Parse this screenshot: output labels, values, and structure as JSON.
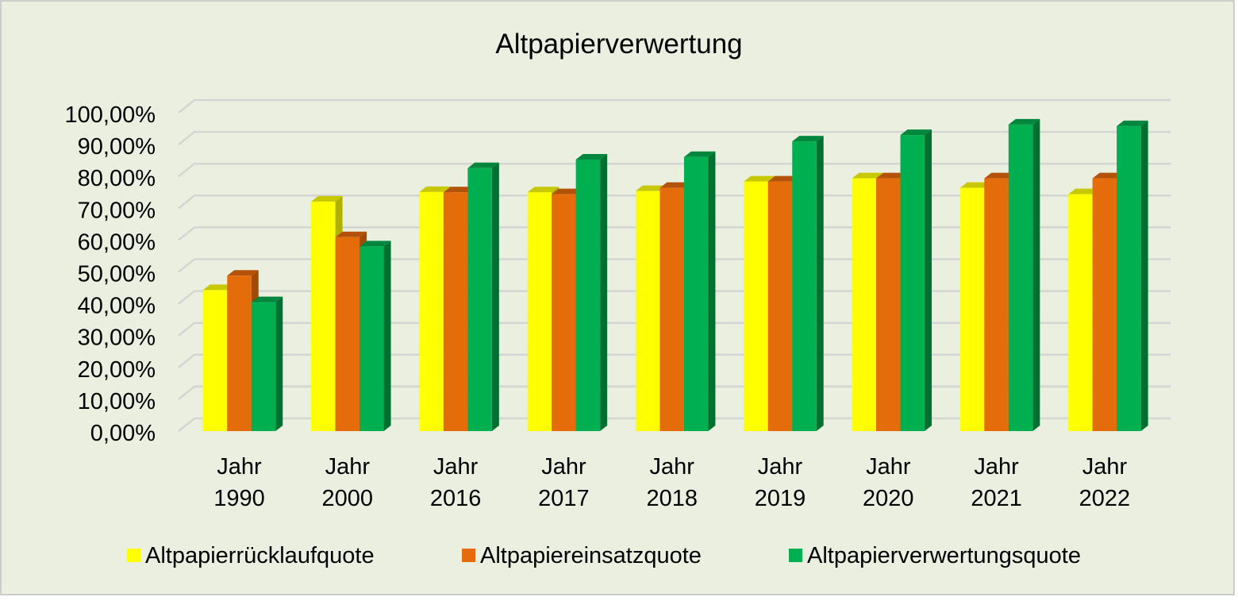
{
  "chart_data": {
    "type": "bar",
    "title": "Altpapierverwertung",
    "categories": [
      [
        "Jahr",
        "1990"
      ],
      [
        "Jahr",
        "2000"
      ],
      [
        "Jahr",
        "2016"
      ],
      [
        "Jahr",
        "2017"
      ],
      [
        "Jahr",
        "2018"
      ],
      [
        "Jahr",
        "2019"
      ],
      [
        "Jahr",
        "2020"
      ],
      [
        "Jahr",
        "2021"
      ],
      [
        "Jahr",
        "2022"
      ]
    ],
    "series": [
      {
        "name": "Altpapierrücklaufquote",
        "color": "#ffff00",
        "top": "#c8c800",
        "side": "#b0b000",
        "values": [
          44.3,
          72.1,
          75.1,
          75.0,
          75.4,
          78.4,
          79.4,
          76.4,
          74.4
        ]
      },
      {
        "name": "Altpapiereinsatzquote",
        "color": "#e46c0a",
        "top": "#b5520a",
        "side": "#a04a05",
        "values": [
          48.8,
          60.9,
          75.0,
          74.4,
          76.4,
          78.4,
          79.4,
          79.4,
          79.4
        ]
      },
      {
        "name": "Altpapierverwertungsquote",
        "color": "#00b050",
        "top": "#00873d",
        "side": "#007030",
        "values": [
          40.5,
          58.0,
          82.6,
          85.3,
          86.1,
          91.0,
          93.0,
          96.3,
          95.8
        ]
      }
    ],
    "yticks": [
      "0,00%",
      "10,00%",
      "20,00%",
      "30,00%",
      "40,00%",
      "50,00%",
      "60,00%",
      "70,00%",
      "80,00%",
      "90,00%",
      "100,00%"
    ],
    "ylim": [
      0,
      100
    ],
    "grid": true,
    "legend": "bottom",
    "background": "#ebefdf"
  }
}
